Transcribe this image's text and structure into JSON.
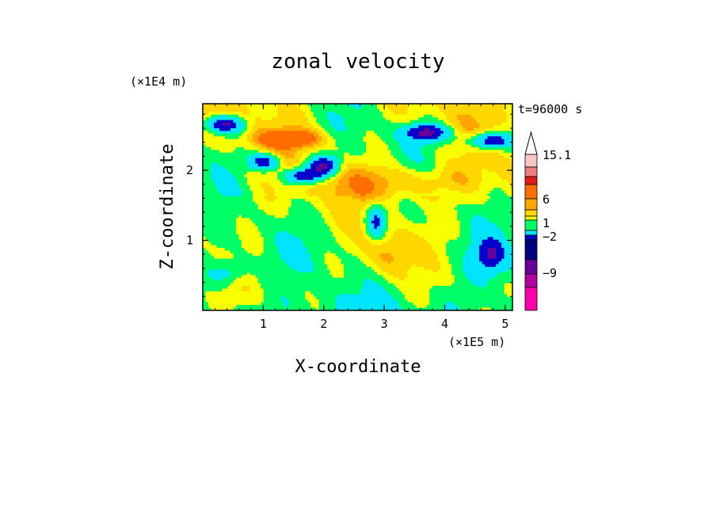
{
  "chart_data": {
    "type": "heatmap",
    "title": "zonal velocity",
    "xlabel": "X-coordinate",
    "ylabel": "Z-coordinate",
    "x_scale_label": "(×1E5 m)",
    "y_scale_label": "(×1E4 m)",
    "time_label": "t=96000 s",
    "x_ticks": [
      "1",
      "2",
      "3",
      "4",
      "5"
    ],
    "y_ticks": [
      "1",
      "2"
    ],
    "xlim": [
      0,
      5.12
    ],
    "ylim": [
      0,
      2.95
    ],
    "colorbar": {
      "labels": [
        "15.1",
        "6",
        "1",
        "−2",
        "−9"
      ],
      "colors": [
        "#ffffff",
        "#f9c6c6",
        "#ee7f7f",
        "#e41a1a",
        "#ff6d00",
        "#ffa500",
        "#ffd700",
        "#f8ff00",
        "#00ff66",
        "#00e5ff",
        "#0000cc",
        "#000080",
        "#660099",
        "#b000a0",
        "#ff00aa"
      ]
    },
    "field_colors": [
      "#ff00aa",
      "#660099",
      "#0000cc",
      "#00e5ff",
      "#00ff66",
      "#f8ff00",
      "#ffd700",
      "#ffa500",
      "#ff6d00"
    ]
  }
}
